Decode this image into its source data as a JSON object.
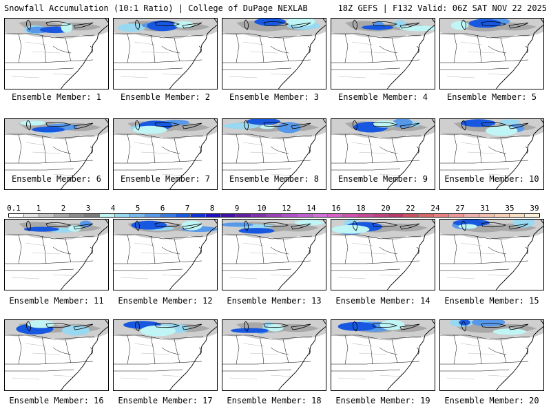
{
  "header": {
    "title": "Snowfall Accumulation (10:1 Ratio) | College of DuPage NEXLAB",
    "run_info": "18Z GEFS | F132 Valid: 06Z SAT NOV 22 2025"
  },
  "colorbar": {
    "labels": [
      "0.1",
      "1",
      "2",
      "3",
      "4",
      "5",
      "6",
      "7",
      "8",
      "9",
      "10",
      "12",
      "14",
      "16",
      "18",
      "20",
      "22",
      "24",
      "27",
      "31",
      "35",
      "39"
    ],
    "colors": [
      "#ffffff",
      "#e6e6e6",
      "#c8c8c8",
      "#a8a8a8",
      "#8c8c8c",
      "#7a7a7a",
      "#bff5f5",
      "#98d8f0",
      "#78b8ec",
      "#5898e8",
      "#3878e4",
      "#1858e0",
      "#1030d8",
      "#2010c0",
      "#4010a8",
      "#6020a0",
      "#8030a8",
      "#9a40b8",
      "#b050c8",
      "#c060d0",
      "#d070d8",
      "#d860c8",
      "#d050b0",
      "#c84898",
      "#c04080",
      "#b83868",
      "#c85060",
      "#d86868",
      "#e88080",
      "#f09898",
      "#f0b0b0",
      "#f4c0b0",
      "#f8d0b8",
      "#fce0c4",
      "#fff0dc"
    ]
  },
  "panels": [
    {
      "caption": "Ensemble Member: 1"
    },
    {
      "caption": "Ensemble Member: 2"
    },
    {
      "caption": "Ensemble Member: 3"
    },
    {
      "caption": "Ensemble Member: 4"
    },
    {
      "caption": "Ensemble Member: 5"
    },
    {
      "caption": "Ensemble Member: 6"
    },
    {
      "caption": "Ensemble Member: 7"
    },
    {
      "caption": "Ensemble Member: 8"
    },
    {
      "caption": "Ensemble Member: 9"
    },
    {
      "caption": "Ensemble Member: 10"
    },
    {
      "caption": "Ensemble Member: 11"
    },
    {
      "caption": "Ensemble Member: 12"
    },
    {
      "caption": "Ensemble Member: 13"
    },
    {
      "caption": "Ensemble Member: 14"
    },
    {
      "caption": "Ensemble Member: 15"
    },
    {
      "caption": "Ensemble Member: 16"
    },
    {
      "caption": "Ensemble Member: 17"
    },
    {
      "caption": "Ensemble Member: 18"
    },
    {
      "caption": "Ensemble Member: 19"
    },
    {
      "caption": "Ensemble Member: 20"
    }
  ]
}
